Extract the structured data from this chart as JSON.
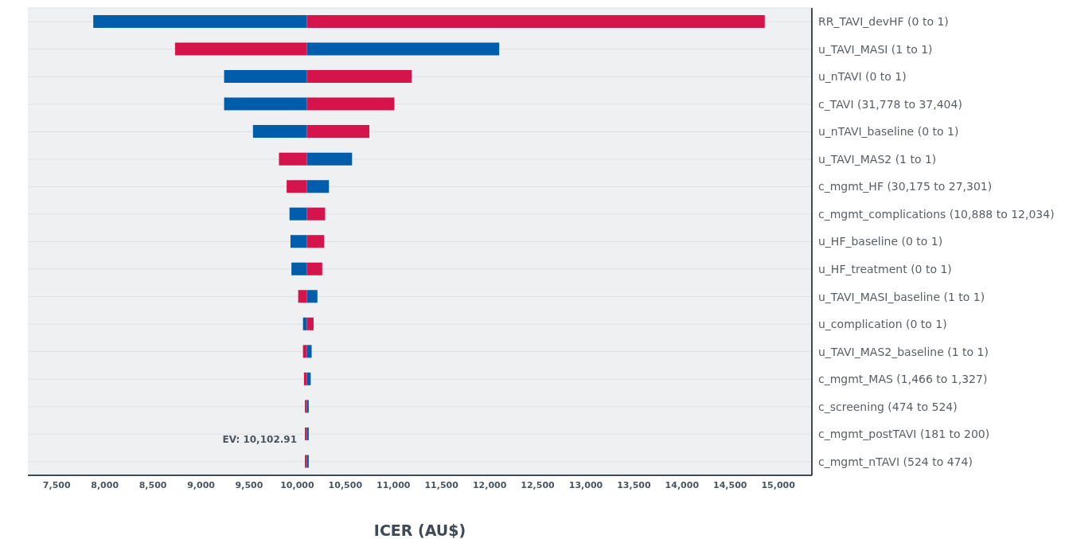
{
  "chart_data": {
    "type": "bar",
    "orientation": "horizontal",
    "xlabel": "ICER (AU$)",
    "categories": [
      "RR_TAVI_devHF (0 to 1)",
      "u_TAVI_MASI (1 to 1)",
      "u_nTAVI (0 to 1)",
      "c_TAVI (31,778 to 37,404)",
      "u_nTAVI_baseline (0 to 1)",
      "u_TAVI_MAS2 (1 to 1)",
      "c_mgmt_HF (30,175 to 27,301)",
      "c_mgmt_complications (10,888 to 12,034)",
      "u_HF_baseline (0 to 1)",
      "u_HF_treatment (0 to 1)",
      "u_TAVI_MASI_baseline (1 to 1)",
      "u_complication (0 to 1)",
      "u_TAVI_MAS2_baseline (1 to 1)",
      "c_mgmt_MAS (1,466 to 1,327)",
      "c_screening (474 to 524)",
      "c_mgmt_postTAVI (181 to 200)",
      "c_mgmt_nTAVI (524 to 474)"
    ],
    "series": [
      {
        "color": "#005dab",
        "base": [
          7880,
          10100,
          9240,
          9240,
          9540,
          10100,
          10100,
          9920,
          9930,
          9940,
          10100,
          10060,
          10100,
          10100,
          10100,
          10100,
          10100
        ],
        "values": [
          2220,
          2000,
          860,
          860,
          560,
          470,
          230,
          180,
          170,
          160,
          110,
          40,
          50,
          40,
          20,
          20,
          20
        ]
      },
      {
        "color": "#d4144a",
        "base": [
          10100,
          8730,
          10100,
          10100,
          10100,
          9810,
          9890,
          10100,
          10100,
          10100,
          10010,
          10100,
          10060,
          10070,
          10080,
          10080,
          10080
        ],
        "values": [
          4760,
          1370,
          1090,
          910,
          650,
          290,
          210,
          190,
          180,
          160,
          90,
          70,
          40,
          30,
          20,
          20,
          20
        ]
      }
    ],
    "xlim": [
      7200,
      15350
    ],
    "xticks": [
      {
        "value": 7500,
        "label": "7,500"
      },
      {
        "value": 8000,
        "label": "8,000"
      },
      {
        "value": 8500,
        "label": "8,500"
      },
      {
        "value": 9000,
        "label": "9,000"
      },
      {
        "value": 9500,
        "label": "9,500"
      },
      {
        "value": 10000,
        "label": "10,000"
      },
      {
        "value": 10500,
        "label": "10,500"
      },
      {
        "value": 11000,
        "label": "11,000"
      },
      {
        "value": 11500,
        "label": "11,500"
      },
      {
        "value": 12000,
        "label": "12,000"
      },
      {
        "value": 12500,
        "label": "12,500"
      },
      {
        "value": 13000,
        "label": "13,000"
      },
      {
        "value": 13500,
        "label": "13,500"
      },
      {
        "value": 14000,
        "label": "14,000"
      },
      {
        "value": 14500,
        "label": "14,500"
      },
      {
        "value": 15000,
        "label": "15,000"
      }
    ],
    "grid": "y",
    "annotations": [
      "EV: 10,102.91"
    ]
  }
}
